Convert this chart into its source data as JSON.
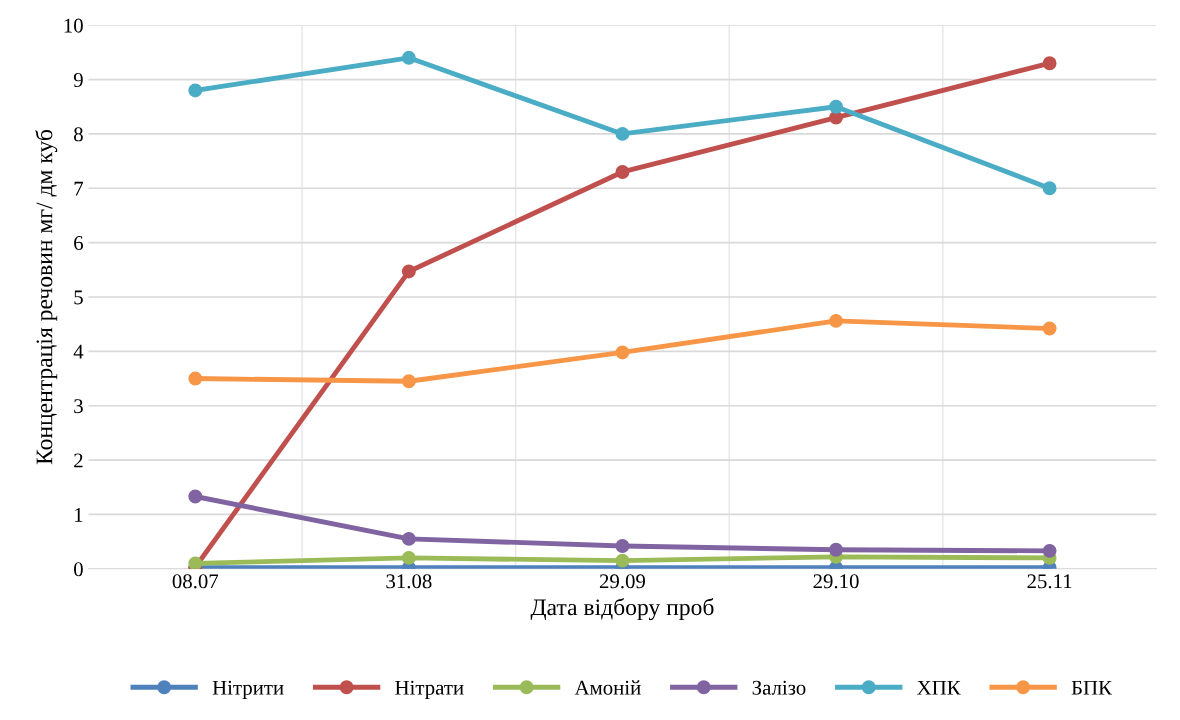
{
  "chart_data": {
    "type": "line",
    "xlabel": "Дата відбору проб",
    "ylabel": "Концентрація речовин мг/ дм куб",
    "categories": [
      "08.07",
      "31.08",
      "29.09",
      "29.10",
      "25.11"
    ],
    "series": [
      {
        "name": "Нітрити",
        "color": "#4f81bd",
        "values": [
          0.02,
          0.02,
          0.02,
          0.02,
          0.02
        ]
      },
      {
        "name": "Нітрати",
        "color": "#c0504d",
        "values": [
          0.03,
          5.47,
          7.3,
          8.3,
          9.3
        ]
      },
      {
        "name": "Амоній",
        "color": "#9bbb59",
        "values": [
          0.1,
          0.2,
          0.15,
          0.22,
          0.2
        ]
      },
      {
        "name": "Залізо",
        "color": "#8064a2",
        "values": [
          1.33,
          0.55,
          0.42,
          0.35,
          0.33
        ]
      },
      {
        "name": "ХПК",
        "color": "#4bacc6",
        "values": [
          8.8,
          9.4,
          8.0,
          8.5,
          7.0
        ]
      },
      {
        "name": "БПК",
        "color": "#f79646",
        "values": [
          3.5,
          3.45,
          3.98,
          4.56,
          4.42
        ]
      }
    ],
    "ylim": [
      0,
      10
    ],
    "yticks": [
      0,
      1,
      2,
      3,
      4,
      5,
      6,
      7,
      8,
      9,
      10
    ],
    "grid": true,
    "legend": "bottom",
    "marker": "circle",
    "line_style": "solid"
  }
}
